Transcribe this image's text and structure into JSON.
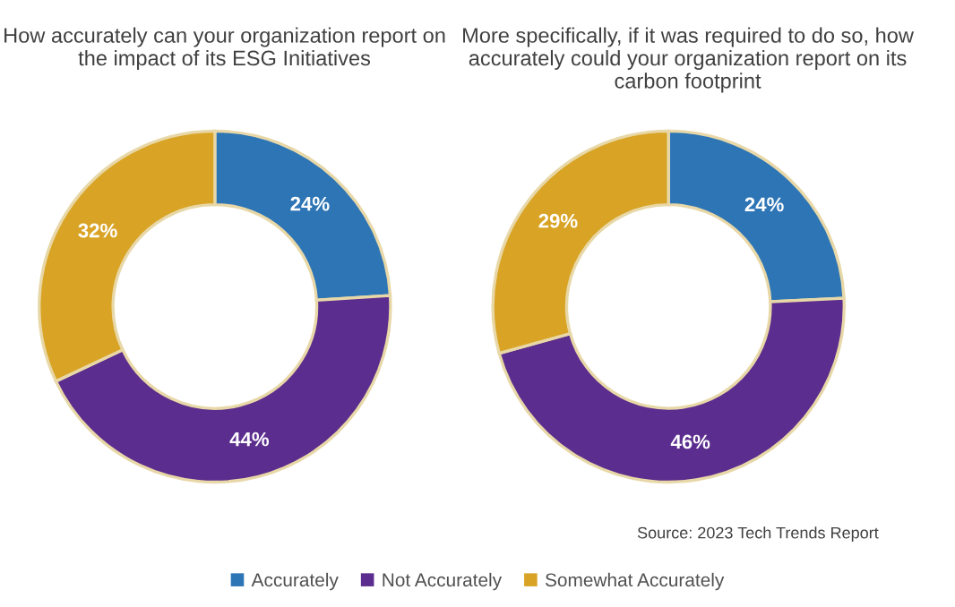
{
  "chart_data": [
    {
      "type": "donut",
      "title": "How accurately can your organization report on the impact of its ESG Initiatives",
      "categories": [
        "Accurately",
        "Not Accurately",
        "Somewhat Accurately"
      ],
      "values": [
        24,
        44,
        32
      ],
      "value_labels": [
        "24%",
        "44%",
        "32%"
      ],
      "colors": [
        "#2e75b6",
        "#5b2d8e",
        "#d9a425"
      ],
      "legend": "bottom"
    },
    {
      "type": "donut",
      "title": "More specifically, if it was required to do so, how accurately could your organization report on its carbon footprint",
      "categories": [
        null,
        null,
        null
      ],
      "values": [
        24,
        46,
        29
      ],
      "value_labels": [
        "24%",
        "46%",
        "29%"
      ],
      "colors": [
        "#2e75b6",
        "#5b2d8e",
        "#d9a425"
      ],
      "annotations": [
        "Source: 2023 Tech Trends Report"
      ]
    }
  ]
}
